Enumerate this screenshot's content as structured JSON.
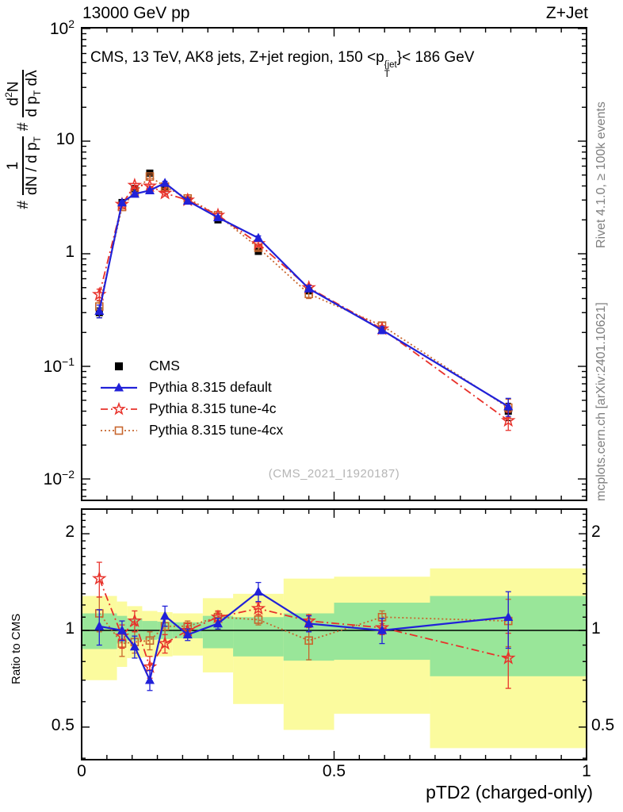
{
  "header": {
    "left": "13000 GeV pp",
    "right": "Z+Jet"
  },
  "title": {
    "pre": "CMS, 13 TeV, AK8 jets, Z+jet region, 150 <p",
    "sup": "{jet",
    "sub": "T",
    "post": "}< 186 GeV"
  },
  "watermark": "(CMS_2021_I1920187)",
  "side_notes": {
    "top": "Rivet 4.1.0, ≥ 100k events",
    "bottom": "mcplots.cern.ch [arXiv:2401.10621]"
  },
  "axes": {
    "x_title": "pTD2 (charged-only)",
    "x_ticks": [
      {
        "label": "0",
        "v": 0
      },
      {
        "label": "0.5",
        "v": 0.5
      },
      {
        "label": "1",
        "v": 1
      }
    ],
    "main_y_ticks": [
      {
        "base": "10",
        "exp": "2",
        "v": 100
      },
      {
        "base": "10",
        "exp": "",
        "v": 10
      },
      {
        "base": "1",
        "exp": "",
        "v": 1
      },
      {
        "base": "10",
        "exp": "−1",
        "v": 0.1
      },
      {
        "base": "10",
        "exp": "−2",
        "v": 0.01
      }
    ],
    "ratio_y_ticks": [
      {
        "label": "2",
        "v": 2
      },
      {
        "label": "1",
        "v": 1
      },
      {
        "label": "0.5",
        "v": 0.5
      }
    ],
    "ratio_y_title": "Ratio to CMS",
    "main_y_title": {
      "h1": "#",
      "f1_num": "1",
      "f1_den_pre": "dN / d p",
      "f1_den_sub": "T",
      "h2": "#",
      "f2_num_pre": "d",
      "f2_num_sup": "2",
      "f2_num_post": "N",
      "f2_den_pre": "d p",
      "f2_den_sub": "T",
      "f2_den_post": " dλ"
    }
  },
  "legend": [
    {
      "label": "CMS",
      "series": "cms"
    },
    {
      "label": "Pythia 8.315 default",
      "series": "default"
    },
    {
      "label": "Pythia 8.315 tune-4c",
      "series": "tune4c"
    },
    {
      "label": "Pythia 8.315 tune-4cx",
      "series": "tune4cx"
    }
  ],
  "colors": {
    "cms": "#000000",
    "default": "#2121d8",
    "tune4c": "#e8322b",
    "tune4cx": "#c8662d",
    "band_green": "#99e699",
    "band_yellow": "#fbfb9e"
  },
  "chart_data": {
    "type": "line",
    "title": "CMS, 13 TeV, AK8 jets, Z+jet region, 150 < pT{jet} < 186 GeV",
    "xlabel": "pTD2 (charged-only)",
    "x": [
      0.035,
      0.08,
      0.105,
      0.135,
      0.165,
      0.21,
      0.27,
      0.35,
      0.45,
      0.595,
      0.845
    ],
    "bin_edges": [
      0.0,
      0.07,
      0.09,
      0.12,
      0.15,
      0.18,
      0.24,
      0.3,
      0.4,
      0.5,
      0.69,
      1.0
    ],
    "main_panel": {
      "y_log": true,
      "ylim": [
        0.0065,
        101
      ],
      "series": [
        {
          "key": "cms",
          "name": "CMS",
          "marker": "square-filled",
          "line": "none",
          "values": [
            0.3,
            2.85,
            3.8,
            5.2,
            3.8,
            3.0,
            2.0,
            1.05,
            0.47,
            0.21,
            0.04
          ],
          "yerr": [
            0.03,
            0.12,
            0.18,
            0.25,
            0.18,
            0.12,
            0.08,
            0.05,
            0.03,
            0.012,
            0.007
          ]
        },
        {
          "key": "tune4cx",
          "name": "Pythia 8.315 tune-4cx",
          "marker": "square-open",
          "line": "dotted",
          "values": [
            0.34,
            2.6,
            3.5,
            4.85,
            3.95,
            3.1,
            2.2,
            1.13,
            0.44,
            0.23,
            0.043
          ],
          "yerr": [
            0.04,
            0.1,
            0.13,
            0.16,
            0.13,
            0.1,
            0.08,
            0.05,
            0.04,
            0.015,
            0.008
          ]
        },
        {
          "key": "tune4c",
          "name": "Pythia 8.315 tune-4c",
          "marker": "star-open",
          "line": "dashdot",
          "values": [
            0.435,
            2.75,
            4.05,
            4.0,
            3.45,
            3.0,
            2.2,
            1.23,
            0.5,
            0.215,
            0.033
          ],
          "yerr": [
            0.05,
            0.1,
            0.15,
            0.14,
            0.12,
            0.1,
            0.08,
            0.05,
            0.03,
            0.015,
            0.006
          ]
        },
        {
          "key": "default",
          "name": "Pythia 8.315 default",
          "marker": "triangle-filled",
          "line": "solid",
          "values": [
            0.31,
            2.85,
            3.4,
            3.65,
            4.25,
            2.95,
            2.1,
            1.38,
            0.49,
            0.21,
            0.044
          ],
          "yerr": [
            0.04,
            0.1,
            0.12,
            0.12,
            0.15,
            0.1,
            0.07,
            0.06,
            0.03,
            0.015,
            0.008
          ]
        }
      ]
    },
    "ratio_panel": {
      "y_log": true,
      "ylim": [
        0.4,
        2.35
      ],
      "reference": 1,
      "series": [
        {
          "key": "tune4cx",
          "name": "Pythia 8.315 tune-4cx",
          "marker": "square-open",
          "line": "dotted",
          "values": [
            1.13,
            0.91,
            0.92,
            0.93,
            1.03,
            1.03,
            1.1,
            1.08,
            0.93,
            1.1,
            1.07
          ],
          "yerr": [
            0.14,
            0.08,
            0.07,
            0.06,
            0.06,
            0.04,
            0.04,
            0.04,
            0.12,
            0.05,
            0.18
          ]
        },
        {
          "key": "tune4c",
          "name": "Pythia 8.315 tune-4c",
          "marker": "star-open",
          "line": "dashdot",
          "values": [
            1.45,
            0.96,
            1.07,
            0.77,
            0.91,
            1.0,
            1.1,
            1.17,
            1.07,
            1.02,
            0.82
          ],
          "yerr": [
            0.18,
            0.08,
            0.08,
            0.06,
            0.06,
            0.05,
            0.05,
            0.05,
            0.05,
            0.05,
            0.16
          ]
        },
        {
          "key": "default",
          "name": "Pythia 8.315 default",
          "marker": "triangle-filled",
          "line": "solid",
          "values": [
            1.03,
            1.0,
            0.89,
            0.7,
            1.11,
            0.97,
            1.05,
            1.32,
            1.05,
            1.0,
            1.1
          ],
          "yerr": [
            0.13,
            0.07,
            0.07,
            0.05,
            0.08,
            0.04,
            0.04,
            0.09,
            0.06,
            0.09,
            0.22
          ]
        }
      ],
      "bands": [
        {
          "lo": 0.0,
          "hi": 0.07,
          "green": [
            0.875,
            1.13
          ],
          "yellow": [
            0.7,
            1.28
          ]
        },
        {
          "lo": 0.07,
          "hi": 0.09,
          "green": [
            0.91,
            1.11
          ],
          "yellow": [
            0.77,
            1.23
          ]
        },
        {
          "lo": 0.09,
          "hi": 0.12,
          "green": [
            0.93,
            1.09
          ],
          "yellow": [
            0.82,
            1.19
          ]
        },
        {
          "lo": 0.12,
          "hi": 0.15,
          "green": [
            0.935,
            1.07
          ],
          "yellow": [
            0.825,
            1.15
          ]
        },
        {
          "lo": 0.15,
          "hi": 0.18,
          "green": [
            0.94,
            1.065
          ],
          "yellow": [
            0.83,
            1.14
          ]
        },
        {
          "lo": 0.18,
          "hi": 0.24,
          "green": [
            0.945,
            1.06
          ],
          "yellow": [
            0.835,
            1.13
          ]
        },
        {
          "lo": 0.24,
          "hi": 0.3,
          "green": [
            0.88,
            1.11
          ],
          "yellow": [
            0.74,
            1.26
          ]
        },
        {
          "lo": 0.3,
          "hi": 0.4,
          "green": [
            0.83,
            1.1
          ],
          "yellow": [
            0.59,
            1.3
          ]
        },
        {
          "lo": 0.4,
          "hi": 0.5,
          "green": [
            0.805,
            1.13
          ],
          "yellow": [
            0.49,
            1.45
          ]
        },
        {
          "lo": 0.5,
          "hi": 0.69,
          "green": [
            0.81,
            1.22
          ],
          "yellow": [
            0.55,
            1.47
          ]
        },
        {
          "lo": 0.69,
          "hi": 1.0,
          "green": [
            0.72,
            1.28
          ],
          "yellow": [
            0.43,
            1.56
          ]
        }
      ]
    }
  }
}
